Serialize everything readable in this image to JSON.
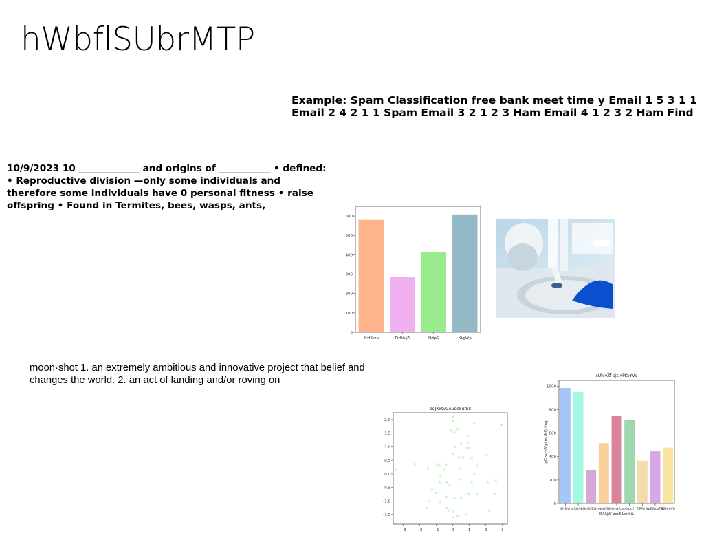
{
  "slide": {
    "title": "hWbflSUbrMTP",
    "spam_text": "Example: Spam Classification free bank meet time y Email 1 5 3 1 1 Email 2 4 2 1 1 Spam Email 3 2 1 2 3 Ham Email 4 1 2 3 2 Ham Find",
    "bio_text": "10/9/2023 10 _____________ and origins of ___________ • defined: • Reproductive division —only some individuals and therefore some individuals have 0 personal fitness • raise offspring • Found in Termites, bees, wasps, ants,",
    "moon_text": "moon·shot 1. an extremely ambitious and innovative project that belief and changes the world. 2. an act of landing and/or roving on"
  },
  "chart_data": [
    {
      "type": "bar",
      "title": "",
      "categories": [
        "ErHEszu",
        "TtHUujA",
        "XLYpQ",
        "XLgWp"
      ],
      "values": [
        580,
        285,
        412,
        608
      ],
      "colors": [
        "#ffb38a",
        "#f0b0f0",
        "#98ec8e",
        "#93b8c6"
      ],
      "ylim": [
        0,
        650
      ],
      "yticks": [
        0,
        100,
        200,
        300,
        400,
        500,
        600
      ]
    },
    {
      "type": "scatter",
      "title": "bgJXxtvGAuoeSuthk",
      "xlim": [
        -3.6,
        3.3
      ],
      "ylim": [
        -1.85,
        2.25
      ],
      "xticks": [
        -3,
        -2,
        -1,
        0,
        1,
        2,
        3
      ],
      "yticks": [
        -1.5,
        -1.0,
        -0.5,
        0.0,
        0.5,
        1.0,
        1.5,
        2.0
      ],
      "color": "#a6f0a6",
      "points": [
        [
          0.0,
          2.1
        ],
        [
          0.0,
          1.95
        ],
        [
          -0.1,
          1.6
        ],
        [
          0.1,
          1.55
        ],
        [
          0.3,
          1.65
        ],
        [
          0.9,
          1.4
        ],
        [
          2.95,
          1.8
        ],
        [
          1.3,
          1.88
        ],
        [
          0.9,
          1.15
        ],
        [
          0.5,
          1.15
        ],
        [
          0.15,
          1.0
        ],
        [
          0.95,
          0.95
        ],
        [
          0.8,
          0.95
        ],
        [
          2.05,
          0.7
        ],
        [
          0.0,
          0.75
        ],
        [
          0.35,
          0.6
        ],
        [
          0.6,
          0.6
        ],
        [
          1.15,
          0.55
        ],
        [
          -2.3,
          0.35
        ],
        [
          -1.5,
          0.2
        ],
        [
          -3.4,
          0.15
        ],
        [
          -0.75,
          0.3
        ],
        [
          -0.95,
          0.35
        ],
        [
          -0.4,
          0.35
        ],
        [
          1.5,
          0.3
        ],
        [
          -0.55,
          0.15
        ],
        [
          0.45,
          0.2
        ],
        [
          1.3,
          0.0
        ],
        [
          -0.8,
          -0.05
        ],
        [
          -0.35,
          -0.3
        ],
        [
          -1.25,
          -0.55
        ],
        [
          2.6,
          -0.25
        ],
        [
          -0.8,
          -0.3
        ],
        [
          -0.2,
          -0.4
        ],
        [
          0.45,
          -0.2
        ],
        [
          1.15,
          -0.3
        ],
        [
          2.1,
          -0.3
        ],
        [
          0.95,
          -0.75
        ],
        [
          -0.4,
          -0.85
        ],
        [
          -1.0,
          -0.7
        ],
        [
          0.1,
          -0.9
        ],
        [
          -1.45,
          -1.0
        ],
        [
          0.5,
          -0.9
        ],
        [
          1.45,
          -0.75
        ],
        [
          2.55,
          -0.75
        ],
        [
          -0.75,
          -1.05
        ],
        [
          -0.4,
          -1.25
        ],
        [
          -1.55,
          -1.25
        ],
        [
          -0.2,
          -1.35
        ],
        [
          0.0,
          -1.4
        ],
        [
          0.3,
          -1.55
        ],
        [
          0.0,
          -1.6
        ],
        [
          0.8,
          -1.5
        ],
        [
          2.2,
          -1.35
        ]
      ]
    },
    {
      "type": "bar",
      "title": "sUhiyZf ajsJyPKyYVg",
      "xlabel": "lFAkjW zexBLcnhiL",
      "ylabel": "gGzechVgjsmuNQUmg",
      "categories": [
        "EHMcl",
        "wXOfNIU",
        "gNOZGf",
        "okiOFM",
        "ulQvwRpu",
        "GlpUf",
        "TJRPvW",
        "glEWpsFN",
        "RZHmVh"
      ],
      "values": [
        985,
        950,
        285,
        515,
        745,
        710,
        365,
        445,
        478
      ],
      "colors": [
        "#a6c6f8",
        "#a4f8e4",
        "#d7a6d6",
        "#f9d09a",
        "#d9849c",
        "#9fd8ae",
        "#f4dcaa",
        "#d7a6e6",
        "#fae5a0"
      ],
      "ylim": [
        0,
        1050
      ],
      "yticks": [
        0,
        200,
        400,
        600,
        800,
        1000
      ]
    }
  ],
  "image": {
    "alt_icon": "room-photo"
  }
}
